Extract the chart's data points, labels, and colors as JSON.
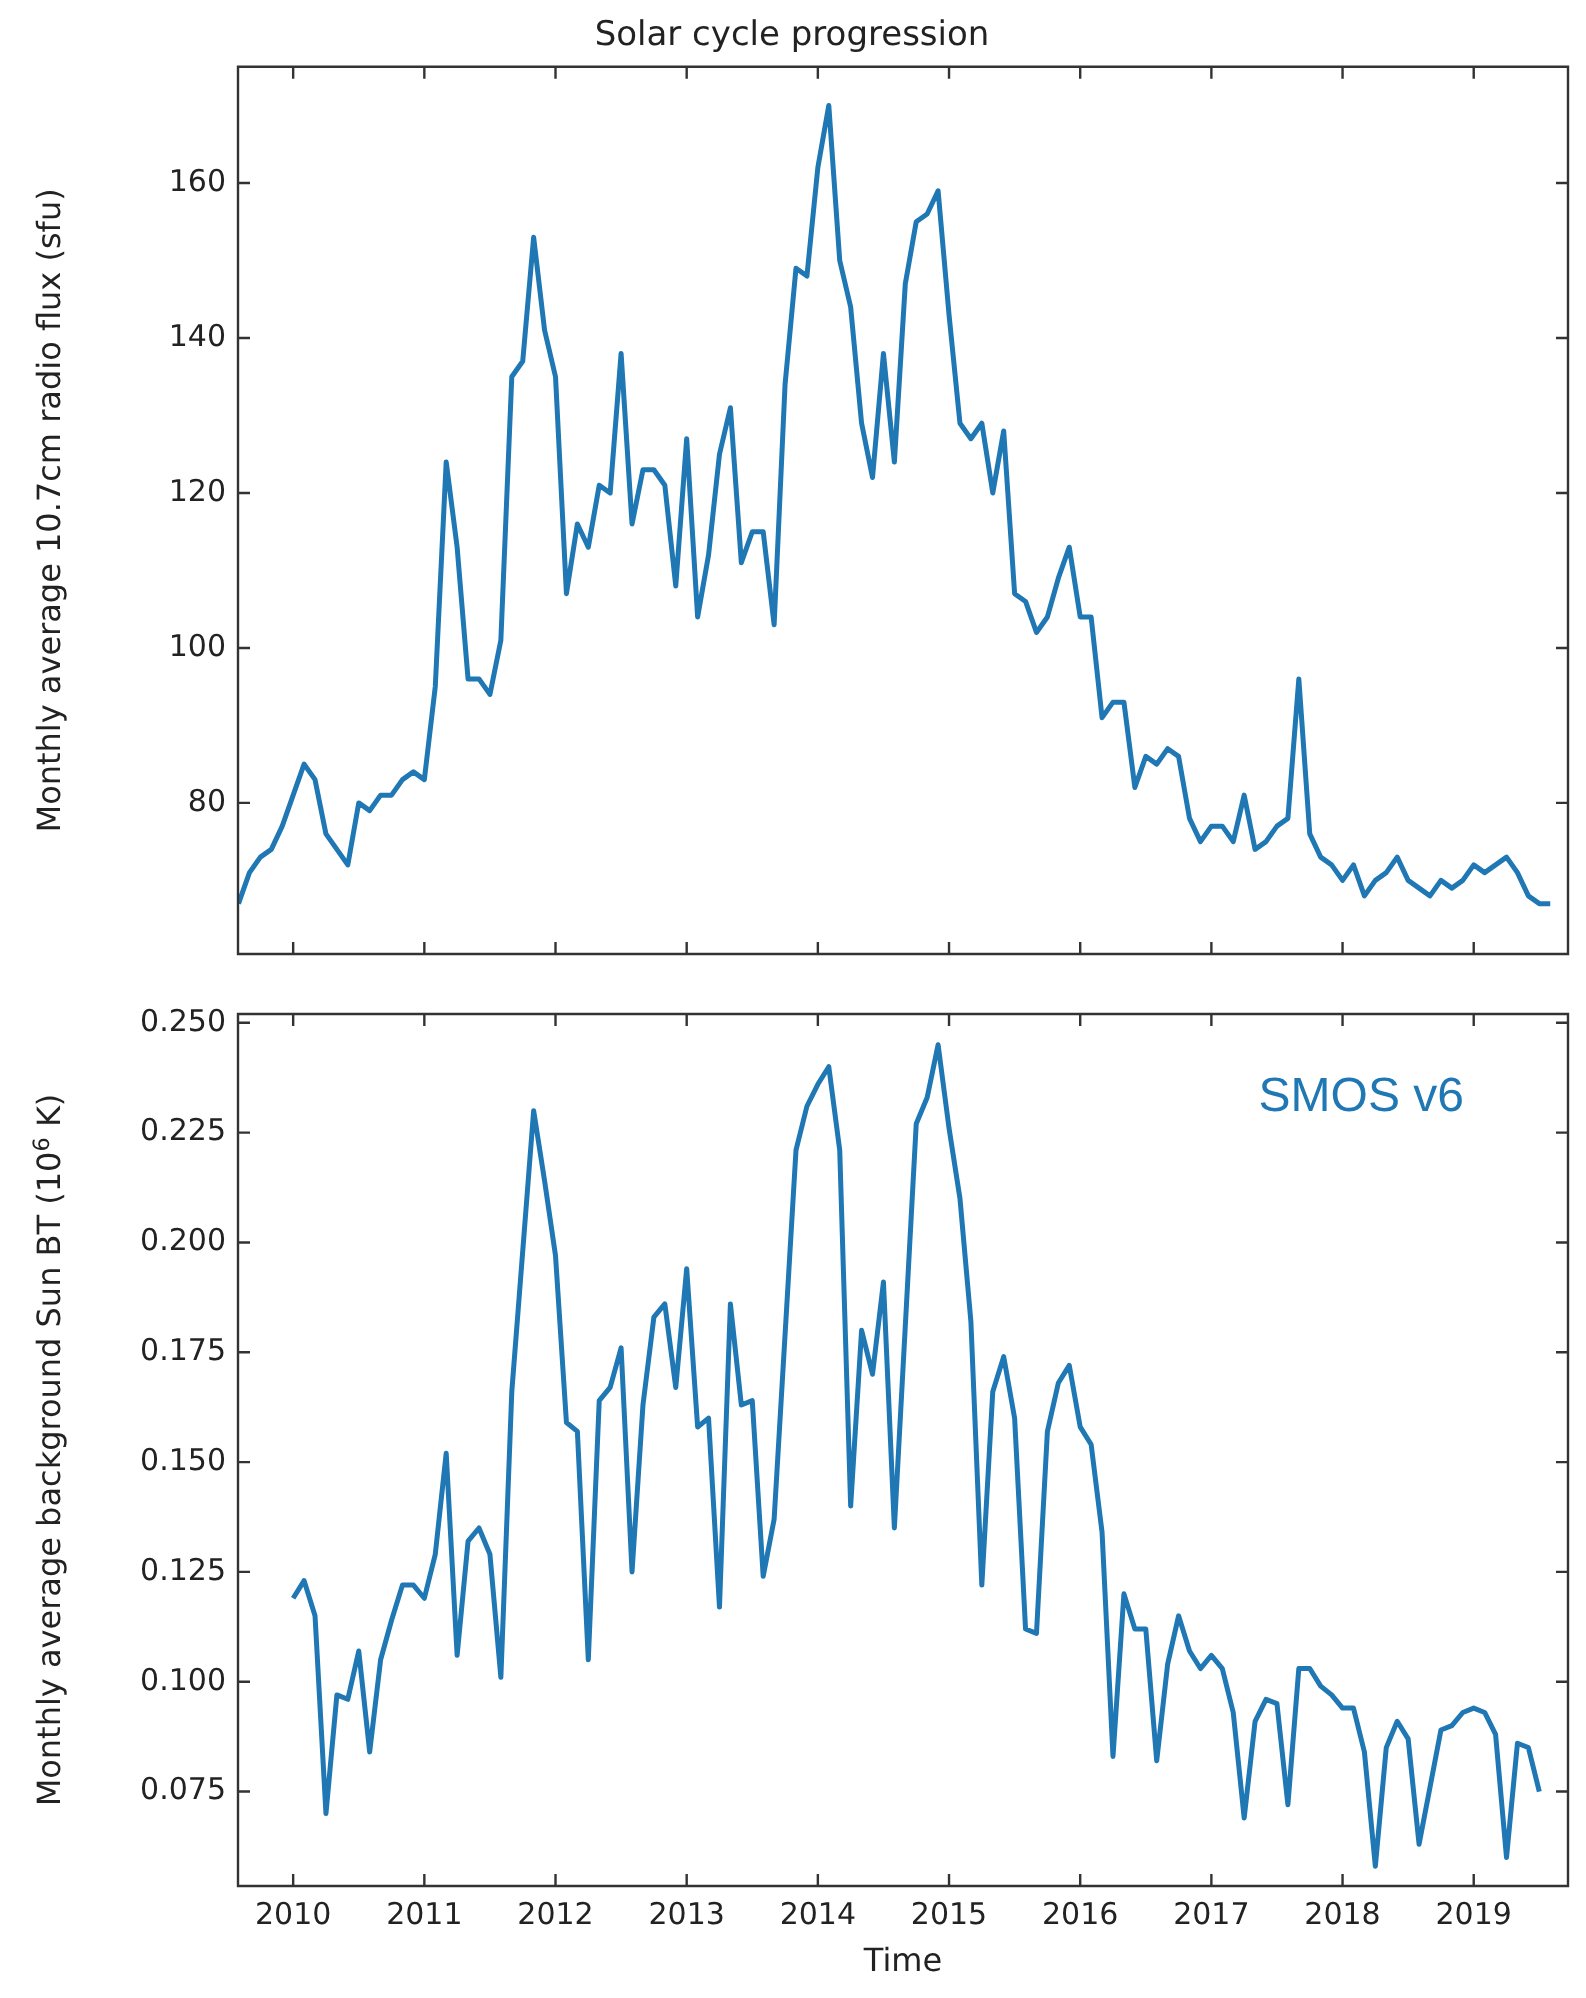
{
  "chart_data": [
    {
      "type": "line",
      "title": "Solar cycle progression",
      "ylabel": "Monthly average 10.7cm radio flux (sfu)",
      "xlim": [
        "2009-07-30",
        "2019-09-20"
      ],
      "xticks": [
        "2010",
        "2011",
        "2012",
        "2013",
        "2014",
        "2015",
        "2016",
        "2017",
        "2018",
        "2019"
      ],
      "ylim": [
        60.5,
        175
      ],
      "yticks": [
        80,
        100,
        120,
        140,
        160
      ],
      "tick_labels": "y",
      "series": [
        {
          "color": "#1f77b4",
          "x": [
            "2009-08",
            "2009-09",
            "2009-10",
            "2009-11",
            "2009-12",
            "2010-01",
            "2010-02",
            "2010-03",
            "2010-04",
            "2010-05",
            "2010-06",
            "2010-07",
            "2010-08",
            "2010-09",
            "2010-10",
            "2010-11",
            "2010-12",
            "2011-01",
            "2011-02",
            "2011-03",
            "2011-04",
            "2011-05",
            "2011-06",
            "2011-07",
            "2011-08",
            "2011-09",
            "2011-10",
            "2011-11",
            "2011-12",
            "2012-01",
            "2012-02",
            "2012-03",
            "2012-04",
            "2012-05",
            "2012-06",
            "2012-07",
            "2012-08",
            "2012-09",
            "2012-10",
            "2012-11",
            "2012-12",
            "2013-01",
            "2013-02",
            "2013-03",
            "2013-04",
            "2013-05",
            "2013-06",
            "2013-07",
            "2013-08",
            "2013-09",
            "2013-10",
            "2013-11",
            "2013-12",
            "2014-01",
            "2014-02",
            "2014-03",
            "2014-04",
            "2014-05",
            "2014-06",
            "2014-07",
            "2014-08",
            "2014-09",
            "2014-10",
            "2014-11",
            "2014-12",
            "2015-01",
            "2015-02",
            "2015-03",
            "2015-04",
            "2015-05",
            "2015-06",
            "2015-07",
            "2015-08",
            "2015-09",
            "2015-10",
            "2015-11",
            "2015-12",
            "2016-01",
            "2016-02",
            "2016-03",
            "2016-04",
            "2016-05",
            "2016-06",
            "2016-07",
            "2016-08",
            "2016-09",
            "2016-10",
            "2016-11",
            "2016-12",
            "2017-01",
            "2017-02",
            "2017-03",
            "2017-04",
            "2017-05",
            "2017-06",
            "2017-07",
            "2017-08",
            "2017-09",
            "2017-10",
            "2017-11",
            "2017-12",
            "2018-01",
            "2018-02",
            "2018-03",
            "2018-04",
            "2018-05",
            "2018-06",
            "2018-07",
            "2018-08",
            "2018-09",
            "2018-10",
            "2018-11",
            "2018-12",
            "2019-01",
            "2019-02",
            "2019-03",
            "2019-04",
            "2019-05",
            "2019-06",
            "2019-07",
            "2019-08"
          ],
          "values": [
            67,
            71,
            73,
            74,
            77,
            81,
            85,
            83,
            76,
            74,
            72,
            80,
            79,
            81,
            81,
            83,
            84,
            83,
            95,
            124,
            113,
            96,
            96,
            94,
            101,
            135,
            137,
            153,
            141,
            135,
            107,
            116,
            113,
            121,
            120,
            138,
            116,
            123,
            123,
            121,
            108,
            127,
            104,
            112,
            125,
            131,
            111,
            115,
            115,
            103,
            134,
            149,
            148,
            162,
            170,
            150,
            144,
            129,
            122,
            138,
            124,
            147,
            155,
            156,
            159,
            143,
            129,
            127,
            129,
            120,
            128,
            107,
            106,
            102,
            104,
            109,
            113,
            104,
            104,
            91,
            93,
            93,
            82,
            86,
            85,
            87,
            86,
            78,
            75,
            77,
            77,
            75,
            81,
            74,
            75,
            77,
            78,
            96,
            76,
            73,
            72,
            70,
            72,
            68,
            70,
            71,
            73,
            70,
            69,
            68,
            70,
            69,
            70,
            72,
            71,
            72,
            73,
            71,
            68,
            67,
            67
          ]
        }
      ]
    },
    {
      "type": "line",
      "xlabel": "Time",
      "ylabel": "Monthly average background Sun BT (10$^{6}$ K)",
      "annotations": [
        "SMOS v6"
      ],
      "xlim": [
        "2009-07-30",
        "2019-09-20"
      ],
      "xticks": [
        "2010",
        "2011",
        "2012",
        "2013",
        "2014",
        "2015",
        "2016",
        "2017",
        "2018",
        "2019"
      ],
      "ylim": [
        0.0535,
        0.252
      ],
      "yticks": [
        0.075,
        {
          "value": 0.1,
          "label": "0.100"
        },
        0.125,
        {
          "value": 0.15,
          "label": "0.150"
        },
        0.175,
        {
          "value": 0.2,
          "label": "0.200"
        },
        0.225,
        {
          "value": 0.25,
          "label": "0.250"
        }
      ],
      "series": [
        {
          "color": "#1f77b4",
          "x": [
            "2010-01",
            "2010-02",
            "2010-03",
            "2010-04",
            "2010-05",
            "2010-06",
            "2010-07",
            "2010-08",
            "2010-09",
            "2010-10",
            "2010-11",
            "2010-12",
            "2011-01",
            "2011-02",
            "2011-03",
            "2011-04",
            "2011-05",
            "2011-06",
            "2011-07",
            "2011-08",
            "2011-09",
            "2011-10",
            "2011-11",
            "2011-12",
            "2012-01",
            "2012-02",
            "2012-03",
            "2012-04",
            "2012-05",
            "2012-06",
            "2012-07",
            "2012-08",
            "2012-09",
            "2012-10",
            "2012-11",
            "2012-12",
            "2013-01",
            "2013-02",
            "2013-03",
            "2013-04",
            "2013-05",
            "2013-06",
            "2013-07",
            "2013-08",
            "2013-09",
            "2013-10",
            "2013-11",
            "2013-12",
            "2014-01",
            "2014-02",
            "2014-03",
            "2014-04",
            "2014-05",
            "2014-06",
            "2014-07",
            "2014-08",
            "2014-09",
            "2014-10",
            "2014-11",
            "2014-12",
            "2015-01",
            "2015-02",
            "2015-03",
            "2015-04",
            "2015-05",
            "2015-06",
            "2015-07",
            "2015-08",
            "2015-09",
            "2015-10",
            "2015-11",
            "2015-12",
            "2016-01",
            "2016-02",
            "2016-03",
            "2016-04",
            "2016-05",
            "2016-06",
            "2016-07",
            "2016-08",
            "2016-09",
            "2016-10",
            "2016-11",
            "2016-12",
            "2017-01",
            "2017-02",
            "2017-03",
            "2017-04",
            "2017-05",
            "2017-06",
            "2017-07",
            "2017-08",
            "2017-09",
            "2017-10",
            "2017-11",
            "2017-12",
            "2018-01",
            "2018-02",
            "2018-03",
            "2018-04",
            "2018-05",
            "2018-06",
            "2018-07",
            "2018-08",
            "2018-09",
            "2018-10",
            "2018-11",
            "2018-12",
            "2019-01",
            "2019-02",
            "2019-03",
            "2019-04",
            "2019-05",
            "2019-06",
            "2019-07"
          ],
          "values": [
            0.119,
            0.123,
            0.115,
            0.07,
            0.097,
            0.096,
            0.107,
            0.084,
            0.105,
            0.114,
            0.122,
            0.122,
            0.119,
            0.129,
            0.152,
            0.106,
            0.132,
            0.135,
            0.129,
            0.101,
            0.166,
            0.198,
            0.23,
            0.214,
            0.197,
            0.159,
            0.157,
            0.105,
            0.164,
            0.167,
            0.176,
            0.125,
            0.163,
            0.183,
            0.186,
            0.167,
            0.194,
            0.158,
            0.16,
            0.117,
            0.186,
            0.163,
            0.164,
            0.124,
            0.137,
            0.179,
            0.221,
            0.231,
            0.236,
            0.24,
            0.221,
            0.14,
            0.18,
            0.17,
            0.191,
            0.135,
            0.181,
            0.227,
            0.233,
            0.245,
            0.226,
            0.21,
            0.182,
            0.122,
            0.166,
            0.174,
            0.16,
            0.112,
            0.111,
            0.157,
            0.168,
            0.172,
            0.158,
            0.154,
            0.134,
            0.083,
            0.12,
            0.112,
            0.112,
            0.082,
            0.104,
            0.115,
            0.107,
            0.103,
            0.106,
            0.103,
            0.093,
            0.069,
            0.091,
            0.096,
            0.095,
            0.072,
            0.103,
            0.103,
            0.099,
            0.097,
            0.094,
            0.094,
            0.084,
            0.058,
            0.085,
            0.091,
            0.087,
            0.063,
            0.076,
            0.089,
            0.09,
            0.093,
            0.094,
            0.093,
            0.088,
            0.06,
            0.086,
            0.085,
            0.075
          ]
        }
      ]
    }
  ]
}
